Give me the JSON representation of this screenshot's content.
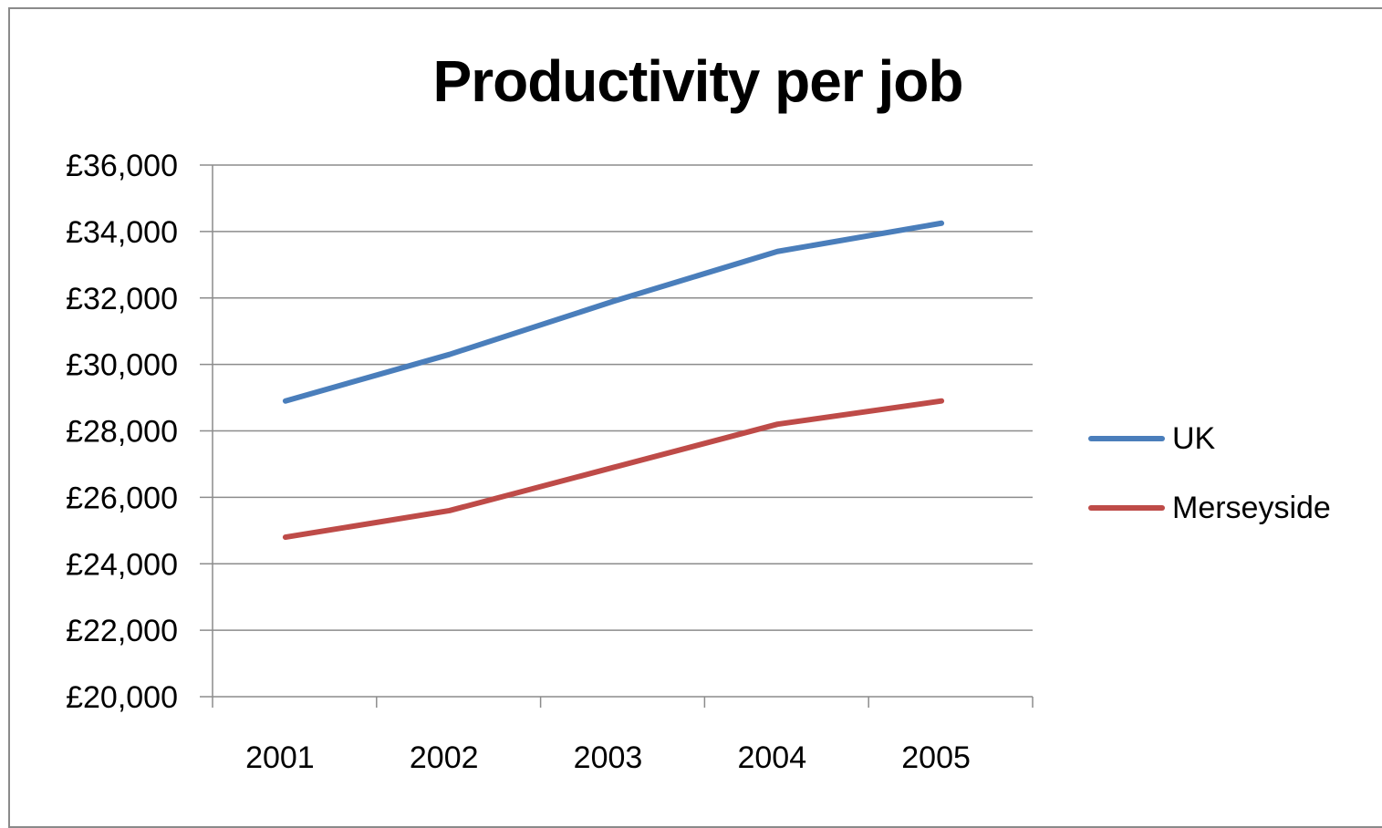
{
  "chart_data": {
    "type": "line",
    "title": "Productivity per job",
    "xlabel": "",
    "ylabel": "",
    "categories": [
      "2001",
      "2002",
      "2003",
      "2004",
      "2005"
    ],
    "series": [
      {
        "name": "UK",
        "color": "#4a7ebb",
        "values": [
          28900,
          30300,
          31900,
          33400,
          34250
        ]
      },
      {
        "name": "Merseyside",
        "color": "#be4b48",
        "values": [
          24800,
          25600,
          26900,
          28200,
          28900
        ]
      }
    ],
    "ylim": [
      20000,
      36000
    ],
    "yticks": [
      "£20,000",
      "£22,000",
      "£24,000",
      "£26,000",
      "£28,000",
      "£30,000",
      "£32,000",
      "£34,000",
      "£36,000"
    ],
    "ytick_values": [
      20000,
      22000,
      24000,
      26000,
      28000,
      30000,
      32000,
      34000,
      36000
    ],
    "grid": true,
    "legend_position": "right"
  }
}
